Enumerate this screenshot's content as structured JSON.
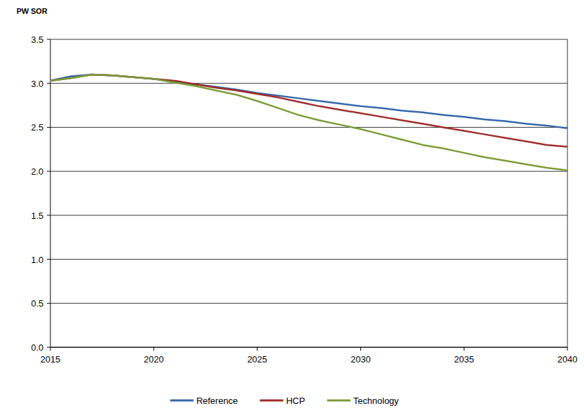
{
  "chart_data": {
    "type": "line",
    "y_label": "PW SOR",
    "x": [
      2015,
      2016,
      2017,
      2018,
      2019,
      2020,
      2021,
      2022,
      2023,
      2024,
      2025,
      2026,
      2027,
      2028,
      2029,
      2030,
      2031,
      2032,
      2033,
      2034,
      2035,
      2036,
      2037,
      2038,
      2039,
      2040
    ],
    "series": [
      {
        "name": "Reference",
        "color": "#3567a9",
        "values": [
          3.03,
          3.08,
          3.1,
          3.09,
          3.07,
          3.05,
          3.02,
          2.99,
          2.96,
          2.93,
          2.89,
          2.86,
          2.83,
          2.8,
          2.77,
          2.74,
          2.72,
          2.69,
          2.67,
          2.64,
          2.62,
          2.59,
          2.57,
          2.54,
          2.52,
          2.49
        ]
      },
      {
        "name": "HCP",
        "color": "#a02b2b",
        "values": [
          3.03,
          3.06,
          3.1,
          3.09,
          3.07,
          3.05,
          3.03,
          2.99,
          2.95,
          2.92,
          2.88,
          2.84,
          2.79,
          2.74,
          2.7,
          2.66,
          2.62,
          2.58,
          2.54,
          2.5,
          2.46,
          2.42,
          2.38,
          2.34,
          2.3,
          2.28
        ]
      },
      {
        "name": "Technology",
        "color": "#7b9b36",
        "values": [
          3.03,
          3.06,
          3.1,
          3.09,
          3.07,
          3.05,
          3.01,
          2.97,
          2.92,
          2.87,
          2.8,
          2.72,
          2.64,
          2.58,
          2.53,
          2.48,
          2.42,
          2.36,
          2.3,
          2.26,
          2.21,
          2.16,
          2.12,
          2.08,
          2.04,
          2.01
        ]
      }
    ],
    "xlim": [
      2015,
      2040
    ],
    "xticks": [
      2015,
      2020,
      2025,
      2030,
      2035,
      2040
    ],
    "ylim": [
      0,
      3.5
    ],
    "yticks": [
      {
        "value": 0,
        "label": "0.0"
      },
      {
        "value": 0.5,
        "label": "0.5"
      },
      {
        "value": 1,
        "label": "1.0"
      },
      {
        "value": 1.5,
        "label": "1.5"
      },
      {
        "value": 2,
        "label": "2.0"
      },
      {
        "value": 2.5,
        "label": "2.5"
      },
      {
        "value": 3,
        "label": "3.0"
      },
      {
        "value": 3.5,
        "label": "3.5"
      }
    ],
    "grid": true,
    "legend": "bottom"
  }
}
